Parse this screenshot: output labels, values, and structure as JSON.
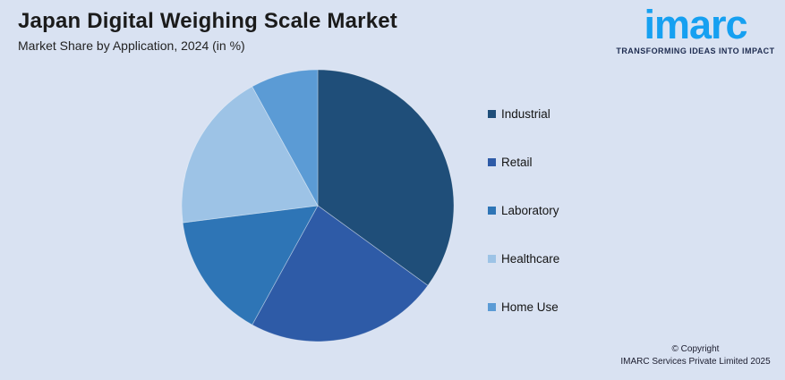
{
  "page": {
    "background": "#d9e2f2",
    "title": "Japan Digital Weighing Scale Market",
    "subtitle": "Market Share by Application, 2024 (in %)"
  },
  "logo": {
    "name": "imarc",
    "tagline": "TRANSFORMING IDEAS INTO IMPACT",
    "brand_color": "#16a0f1",
    "tagline_color": "#1e2c50"
  },
  "chart_data": {
    "type": "pie",
    "title": "Japan Digital Weighing Scale Market",
    "subtitle": "Market Share by Application, 2024 (in %)",
    "unit": "%",
    "categories": [
      "Industrial",
      "Retail",
      "Laboratory",
      "Healthcare",
      "Home Use"
    ],
    "values": [
      35,
      23,
      15,
      19,
      8
    ],
    "colors": [
      "#1f4e79",
      "#2e5ba7",
      "#2e75b6",
      "#9dc3e6",
      "#5b9bd5"
    ],
    "start_angle_deg": 0,
    "direction": "clockwise",
    "legend_position": "right",
    "data_labels_shown": false
  },
  "footer": {
    "copyright_line1": "© Copyright",
    "copyright_line2": "IMARC Services Private Limited 2025"
  }
}
